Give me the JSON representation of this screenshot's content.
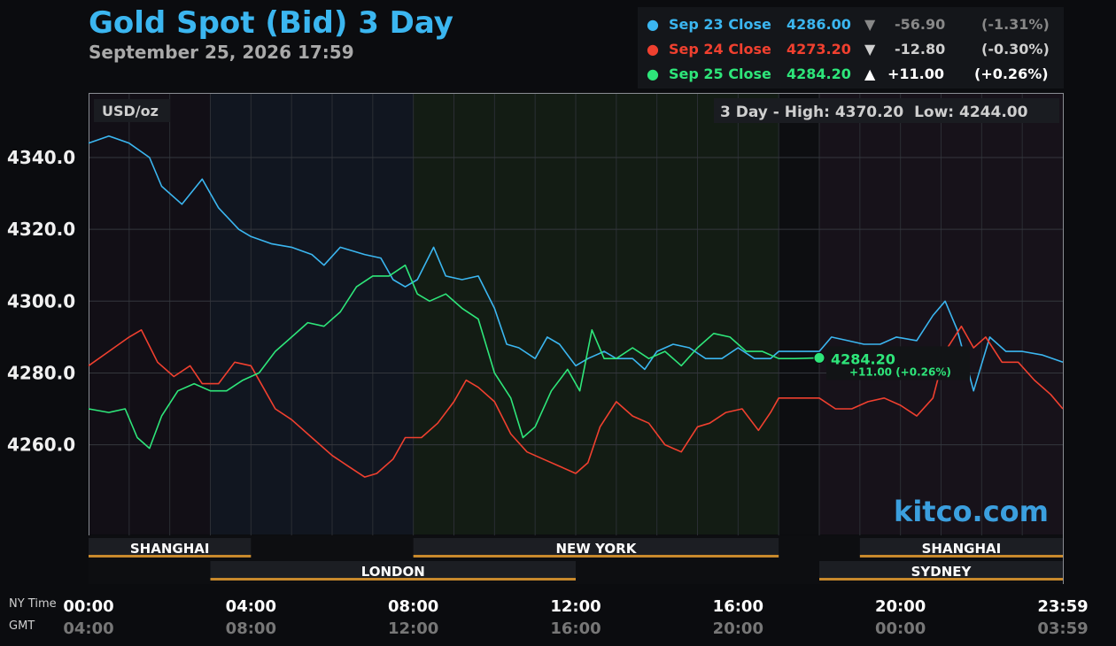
{
  "title": "Gold Spot (Bid) 3 Day",
  "subtitle": "September 25, 2026 17:59",
  "legend": [
    {
      "label": "Sep 23 Close",
      "value": "4286.00",
      "arrow": "▼",
      "change": "-56.90",
      "pct": "(-1.31%)",
      "color": "#3bb6f0",
      "dim": true
    },
    {
      "label": "Sep 24 Close",
      "value": "4273.20",
      "arrow": "▼",
      "change": "-12.80",
      "pct": "(-0.30%)",
      "color": "#f0402f",
      "dim": true
    },
    {
      "label": "Sep 25 Close",
      "value": "4284.20",
      "arrow": "▲",
      "change": "+11.00",
      "pct": "(+0.26%)",
      "color": "#2ee67a",
      "dim": false
    }
  ],
  "unit_label": "USD/oz",
  "range_label": "3 Day - High: 4370.20  Low: 4244.00",
  "watermark": "kitco.com",
  "last": {
    "value": "4284.20",
    "change": "+11.00 (+0.26%)"
  },
  "nytime_label": "NY Time",
  "gmt_label": "GMT",
  "x_ticks": [
    {
      "ny": "00:00",
      "gmt": "04:00",
      "h": 0
    },
    {
      "ny": "04:00",
      "gmt": "08:00",
      "h": 4
    },
    {
      "ny": "08:00",
      "gmt": "12:00",
      "h": 8
    },
    {
      "ny": "12:00",
      "gmt": "16:00",
      "h": 12
    },
    {
      "ny": "16:00",
      "gmt": "20:00",
      "h": 16
    },
    {
      "ny": "20:00",
      "gmt": "00:00",
      "h": 20
    },
    {
      "ny": "23:59",
      "gmt": "03:59",
      "h": 24
    }
  ],
  "sessions": [
    {
      "name": "SHANGHAI",
      "start": 0,
      "end": 4,
      "row": 0
    },
    {
      "name": "NEW YORK",
      "start": 8,
      "end": 17,
      "row": 0
    },
    {
      "name": "SHANGHAI",
      "start": 19,
      "end": 24,
      "row": 0
    },
    {
      "name": "LONDON",
      "start": 3,
      "end": 12,
      "row": 1
    },
    {
      "name": "SYDNEY",
      "start": 18,
      "end": 24,
      "row": 1
    }
  ],
  "chart_data": {
    "type": "line",
    "title": "Gold Spot (Bid) 3 Day",
    "ylabel": "USD/oz",
    "ylim": [
      4235,
      4358
    ],
    "y_ticks": [
      4260.0,
      4280.0,
      4300.0,
      4320.0,
      4340.0
    ],
    "x_range_hours": [
      0,
      24
    ],
    "series": [
      {
        "name": "Sep 23 Close",
        "color": "#3bb6f0",
        "points": [
          [
            0,
            4344
          ],
          [
            0.5,
            4346
          ],
          [
            1,
            4344
          ],
          [
            1.5,
            4340
          ],
          [
            1.8,
            4332
          ],
          [
            2.3,
            4327
          ],
          [
            2.8,
            4334
          ],
          [
            3.2,
            4326
          ],
          [
            3.7,
            4320
          ],
          [
            4,
            4318
          ],
          [
            4.5,
            4316
          ],
          [
            5,
            4315
          ],
          [
            5.5,
            4313
          ],
          [
            5.8,
            4310
          ],
          [
            6.2,
            4315
          ],
          [
            6.8,
            4313
          ],
          [
            7.2,
            4312
          ],
          [
            7.5,
            4306
          ],
          [
            7.8,
            4304
          ],
          [
            8.1,
            4306
          ],
          [
            8.5,
            4315
          ],
          [
            8.8,
            4307
          ],
          [
            9.2,
            4306
          ],
          [
            9.6,
            4307
          ],
          [
            10,
            4298
          ],
          [
            10.3,
            4288
          ],
          [
            10.6,
            4287
          ],
          [
            11,
            4284
          ],
          [
            11.3,
            4290
          ],
          [
            11.6,
            4288
          ],
          [
            12,
            4282
          ],
          [
            12.3,
            4284
          ],
          [
            12.7,
            4286
          ],
          [
            13,
            4284
          ],
          [
            13.4,
            4284
          ],
          [
            13.7,
            4281
          ],
          [
            14,
            4286
          ],
          [
            14.4,
            4288
          ],
          [
            14.8,
            4287
          ],
          [
            15.2,
            4284
          ],
          [
            15.6,
            4284
          ],
          [
            16,
            4287
          ],
          [
            16.4,
            4284
          ],
          [
            16.8,
            4284
          ],
          [
            17,
            4286
          ],
          [
            18,
            4286
          ],
          [
            18.3,
            4290
          ],
          [
            18.7,
            4289
          ],
          [
            19.1,
            4288
          ],
          [
            19.5,
            4288
          ],
          [
            19.9,
            4290
          ],
          [
            20.4,
            4289
          ],
          [
            20.8,
            4296
          ],
          [
            21.1,
            4300
          ],
          [
            21.4,
            4292
          ],
          [
            21.8,
            4275
          ],
          [
            22.2,
            4290
          ],
          [
            22.6,
            4286
          ],
          [
            23,
            4286
          ],
          [
            23.5,
            4285
          ],
          [
            24,
            4283
          ]
        ]
      },
      {
        "name": "Sep 24 Close",
        "color": "#f0402f",
        "points": [
          [
            0,
            4282
          ],
          [
            0.5,
            4286
          ],
          [
            1,
            4290
          ],
          [
            1.3,
            4292
          ],
          [
            1.7,
            4283
          ],
          [
            2.1,
            4279
          ],
          [
            2.5,
            4282
          ],
          [
            2.8,
            4277
          ],
          [
            3.2,
            4277
          ],
          [
            3.6,
            4283
          ],
          [
            4,
            4282
          ],
          [
            4.3,
            4276
          ],
          [
            4.6,
            4270
          ],
          [
            5,
            4267
          ],
          [
            5.5,
            4262
          ],
          [
            6,
            4257
          ],
          [
            6.4,
            4254
          ],
          [
            6.8,
            4251
          ],
          [
            7.1,
            4252
          ],
          [
            7.5,
            4256
          ],
          [
            7.8,
            4262
          ],
          [
            8.2,
            4262
          ],
          [
            8.6,
            4266
          ],
          [
            9,
            4272
          ],
          [
            9.3,
            4278
          ],
          [
            9.6,
            4276
          ],
          [
            10,
            4272
          ],
          [
            10.4,
            4263
          ],
          [
            10.8,
            4258
          ],
          [
            11.2,
            4256
          ],
          [
            11.6,
            4254
          ],
          [
            12,
            4252
          ],
          [
            12.3,
            4255
          ],
          [
            12.6,
            4265
          ],
          [
            13,
            4272
          ],
          [
            13.4,
            4268
          ],
          [
            13.8,
            4266
          ],
          [
            14.2,
            4260
          ],
          [
            14.6,
            4258
          ],
          [
            15,
            4265
          ],
          [
            15.3,
            4266
          ],
          [
            15.7,
            4269
          ],
          [
            16.1,
            4270
          ],
          [
            16.5,
            4264
          ],
          [
            16.8,
            4269
          ],
          [
            17,
            4273
          ],
          [
            18,
            4273
          ],
          [
            18.4,
            4270
          ],
          [
            18.8,
            4270
          ],
          [
            19.2,
            4272
          ],
          [
            19.6,
            4273
          ],
          [
            20,
            4271
          ],
          [
            20.4,
            4268
          ],
          [
            20.8,
            4273
          ],
          [
            21.1,
            4286
          ],
          [
            21.5,
            4293
          ],
          [
            21.8,
            4287
          ],
          [
            22.1,
            4290
          ],
          [
            22.5,
            4283
          ],
          [
            22.9,
            4283
          ],
          [
            23.3,
            4278
          ],
          [
            23.7,
            4274
          ],
          [
            24,
            4270
          ]
        ]
      },
      {
        "name": "Sep 25 Close",
        "color": "#2ee67a",
        "points": [
          [
            0,
            4270
          ],
          [
            0.5,
            4269
          ],
          [
            0.9,
            4270
          ],
          [
            1.2,
            4262
          ],
          [
            1.5,
            4259
          ],
          [
            1.8,
            4268
          ],
          [
            2.2,
            4275
          ],
          [
            2.6,
            4277
          ],
          [
            3,
            4275
          ],
          [
            3.4,
            4275
          ],
          [
            3.8,
            4278
          ],
          [
            4.2,
            4280
          ],
          [
            4.6,
            4286
          ],
          [
            5,
            4290
          ],
          [
            5.4,
            4294
          ],
          [
            5.8,
            4293
          ],
          [
            6.2,
            4297
          ],
          [
            6.6,
            4304
          ],
          [
            7,
            4307
          ],
          [
            7.4,
            4307
          ],
          [
            7.8,
            4310
          ],
          [
            8.1,
            4302
          ],
          [
            8.4,
            4300
          ],
          [
            8.8,
            4302
          ],
          [
            9.2,
            4298
          ],
          [
            9.6,
            4295
          ],
          [
            10,
            4280
          ],
          [
            10.4,
            4273
          ],
          [
            10.7,
            4262
          ],
          [
            11,
            4265
          ],
          [
            11.4,
            4275
          ],
          [
            11.8,
            4281
          ],
          [
            12.1,
            4275
          ],
          [
            12.4,
            4292
          ],
          [
            12.7,
            4284
          ],
          [
            13,
            4284
          ],
          [
            13.4,
            4287
          ],
          [
            13.8,
            4284
          ],
          [
            14.2,
            4286
          ],
          [
            14.6,
            4282
          ],
          [
            15,
            4287
          ],
          [
            15.4,
            4291
          ],
          [
            15.8,
            4290
          ],
          [
            16.2,
            4286
          ],
          [
            16.6,
            4286
          ],
          [
            17,
            4284
          ],
          [
            17.4,
            4284
          ],
          [
            18,
            4284.2
          ]
        ]
      }
    ]
  }
}
